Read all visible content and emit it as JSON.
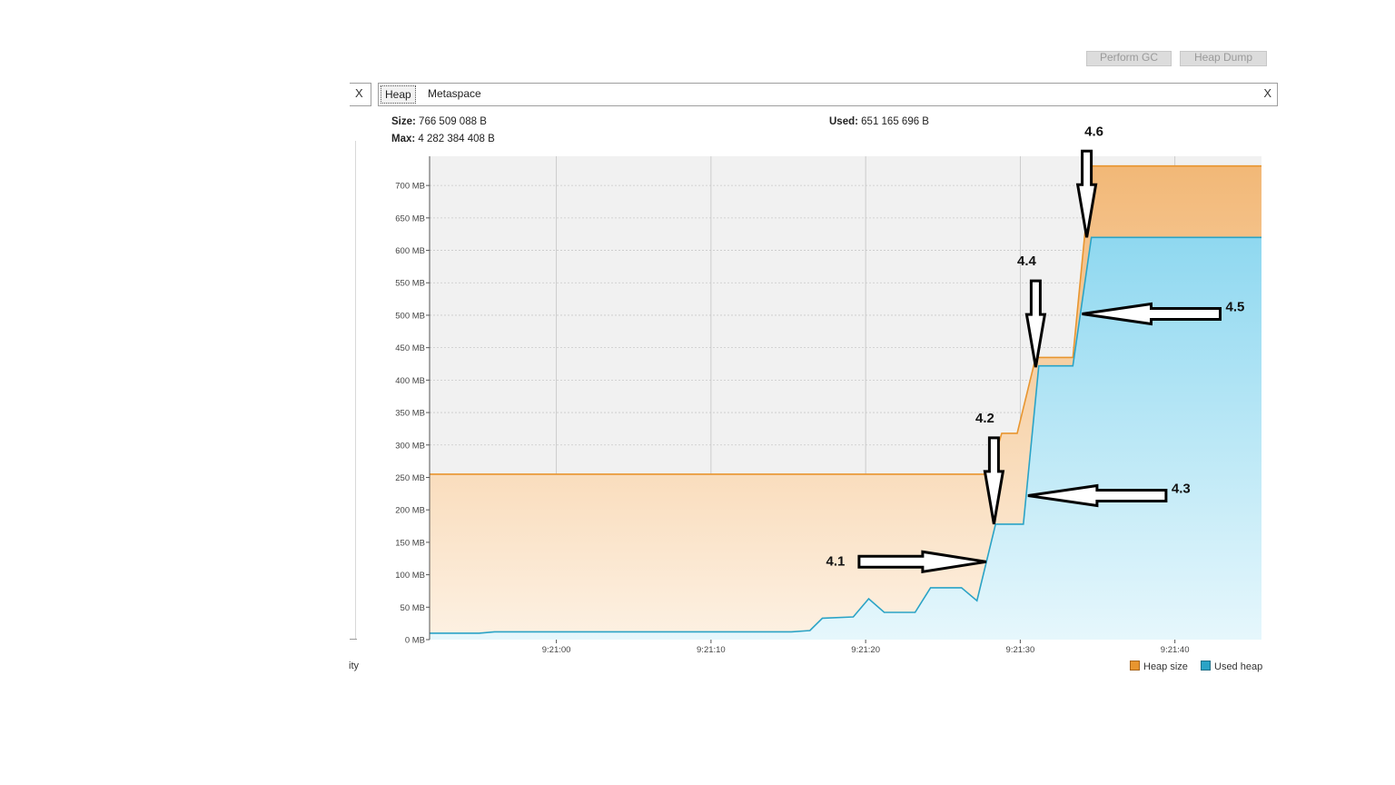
{
  "toolbar": {
    "gc_label": "Perform GC",
    "dump_label": "Heap Dump"
  },
  "left_tab": {
    "close_glyph": "X",
    "fragment": "ity"
  },
  "tabs": [
    {
      "label": "Heap",
      "selected": true
    },
    {
      "label": "Metaspace",
      "selected": false
    }
  ],
  "tabs_close_glyph": "X",
  "stats": {
    "size_label": "Size:",
    "size_value": "766 509 088 B",
    "used_label": "Used:",
    "used_value": "651 165 696 B",
    "max_label": "Max:",
    "max_value": "4 282 384 408 B"
  },
  "colors": {
    "heap_size": "#e8952f",
    "used_heap": "#2aa3c6",
    "heap_fill": "#f5c28c",
    "used_fill": "#9fdcf0"
  },
  "chart_data": {
    "type": "area",
    "title": "",
    "xlabel": "",
    "ylabel": "",
    "ylim": [
      0,
      745
    ],
    "yticks": [
      {
        "value": 0,
        "label": "0 MB"
      },
      {
        "value": 50,
        "label": "50 MB"
      },
      {
        "value": 100,
        "label": "100 MB"
      },
      {
        "value": 150,
        "label": "150 MB"
      },
      {
        "value": 200,
        "label": "200 MB"
      },
      {
        "value": 250,
        "label": "250 MB"
      },
      {
        "value": 300,
        "label": "300 MB"
      },
      {
        "value": 350,
        "label": "350 MB"
      },
      {
        "value": 400,
        "label": "400 MB"
      },
      {
        "value": 450,
        "label": "450 MB"
      },
      {
        "value": 500,
        "label": "500 MB"
      },
      {
        "value": 550,
        "label": "550 MB"
      },
      {
        "value": 600,
        "label": "600 MB"
      },
      {
        "value": 650,
        "label": "650 MB"
      },
      {
        "value": 700,
        "label": "700 MB"
      }
    ],
    "xlim": [
      "9:20:51.8",
      "9:21:45.6"
    ],
    "xticks": [
      {
        "value": "9:21:00",
        "label": "9:21:00"
      },
      {
        "value": "9:21:10",
        "label": "9:21:10"
      },
      {
        "value": "9:21:20",
        "label": "9:21:20"
      },
      {
        "value": "9:21:30",
        "label": "9:21:30"
      },
      {
        "value": "9:21:40",
        "label": "9:21:40"
      }
    ],
    "grid": true,
    "legend_position": "bottom-right",
    "series": [
      {
        "name": "Heap size",
        "points": [
          [
            "9:20:51.8",
            255
          ],
          [
            "9:21:28.0",
            255
          ],
          [
            "9:21:28.8",
            318
          ],
          [
            "9:21:29.8",
            318
          ],
          [
            "9:21:31.0",
            435
          ],
          [
            "9:21:33.4",
            435
          ],
          [
            "9:21:34.6",
            730
          ],
          [
            "9:21:45.6",
            730
          ]
        ]
      },
      {
        "name": "Used heap",
        "points": [
          [
            "9:20:51.8",
            10
          ],
          [
            "9:20:55.0",
            10
          ],
          [
            "9:20:56.0",
            12
          ],
          [
            "9:21:15.2",
            12
          ],
          [
            "9:21:16.4",
            14
          ],
          [
            "9:21:17.2",
            33
          ],
          [
            "9:21:19.2",
            35
          ],
          [
            "9:21:20.2",
            63
          ],
          [
            "9:21:21.2",
            42
          ],
          [
            "9:21:23.2",
            42
          ],
          [
            "9:21:24.2",
            80
          ],
          [
            "9:21:26.2",
            80
          ],
          [
            "9:21:27.2",
            60
          ],
          [
            "9:21:28.4",
            178
          ],
          [
            "9:21:30.2",
            178
          ],
          [
            "9:21:31.2",
            422
          ],
          [
            "9:21:33.4",
            422
          ],
          [
            "9:21:34.6",
            620
          ],
          [
            "9:21:45.6",
            620
          ]
        ]
      }
    ],
    "annotations": [
      {
        "label": "4.1",
        "direction": "right",
        "x": "9:21:27.8",
        "y": 120
      },
      {
        "label": "4.2",
        "direction": "down",
        "x": "9:21:28.3",
        "y": 178
      },
      {
        "label": "4.3",
        "direction": "left",
        "x": "9:21:30.5",
        "y": 222
      },
      {
        "label": "4.4",
        "direction": "down",
        "x": "9:21:31.0",
        "y": 420
      },
      {
        "label": "4.5",
        "direction": "left",
        "x": "9:21:34.0",
        "y": 502
      },
      {
        "label": "4.6",
        "direction": "down",
        "x": "9:21:34.3",
        "y": 620
      }
    ]
  }
}
